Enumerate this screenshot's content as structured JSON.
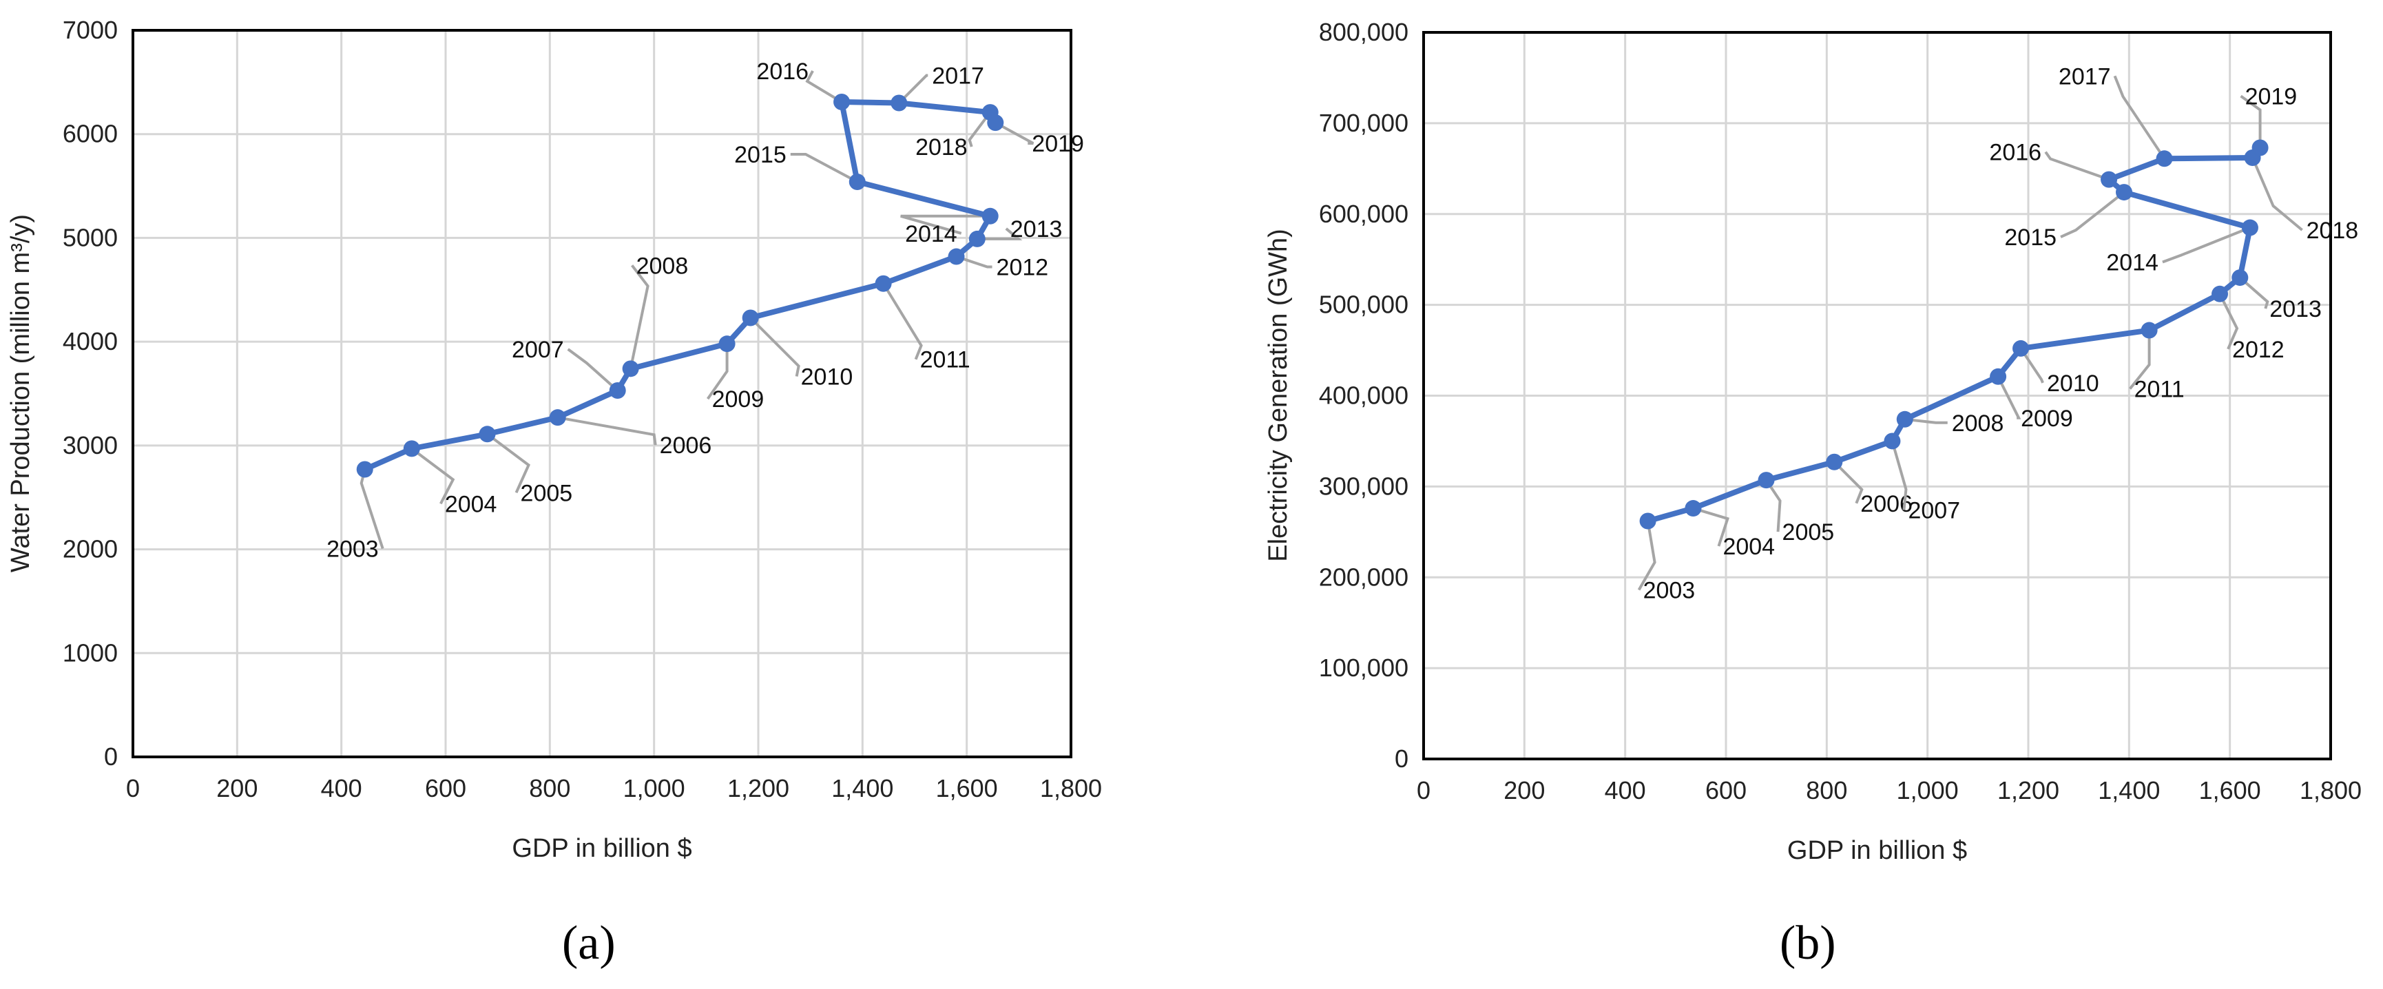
{
  "chart_data": [
    {
      "type": "line",
      "panel": "(a)",
      "xlabel": "GDP in billion $",
      "ylabel": "Water Production (million m³/y)",
      "xlim": [
        0,
        1800
      ],
      "ylim": [
        0,
        7000
      ],
      "xticks": [
        0,
        200,
        400,
        600,
        800,
        1000,
        1200,
        1400,
        1600,
        1800
      ],
      "xtick_labels": [
        "0",
        "200",
        "400",
        "600",
        "800",
        "1,000",
        "1,200",
        "1,400",
        "1,600",
        "1,800"
      ],
      "yticks": [
        0,
        1000,
        2000,
        3000,
        4000,
        5000,
        6000,
        7000
      ],
      "ytick_labels": [
        "0",
        "1000",
        "2000",
        "3000",
        "4000",
        "5000",
        "6000",
        "7000"
      ],
      "grid": true,
      "points": [
        {
          "label": "2003",
          "x": 445,
          "y": 2770
        },
        {
          "label": "2004",
          "x": 535,
          "y": 2970
        },
        {
          "label": "2005",
          "x": 680,
          "y": 3110
        },
        {
          "label": "2006",
          "x": 815,
          "y": 3270
        },
        {
          "label": "2007",
          "x": 930,
          "y": 3530
        },
        {
          "label": "2008",
          "x": 955,
          "y": 3740
        },
        {
          "label": "2009",
          "x": 1140,
          "y": 3980
        },
        {
          "label": "2010",
          "x": 1185,
          "y": 4230
        },
        {
          "label": "2011",
          "x": 1440,
          "y": 4560
        },
        {
          "label": "2012",
          "x": 1580,
          "y": 4820
        },
        {
          "label": "2013",
          "x": 1620,
          "y": 4990
        },
        {
          "label": "2014",
          "x": 1645,
          "y": 5210
        },
        {
          "label": "2015",
          "x": 1390,
          "y": 5540
        },
        {
          "label": "2016",
          "x": 1360,
          "y": 6310
        },
        {
          "label": "2017",
          "x": 1470,
          "y": 6300
        },
        {
          "label": "2018",
          "x": 1645,
          "y": 6210
        },
        {
          "label": "2019",
          "x": 1655,
          "y": 6110
        }
      ]
    },
    {
      "type": "line",
      "panel": "(b)",
      "xlabel": "GDP in billion $",
      "ylabel": "Electricity  Generation (GWh)",
      "xlim": [
        0,
        1800
      ],
      "ylim": [
        0,
        800000
      ],
      "xticks": [
        0,
        200,
        400,
        600,
        800,
        1000,
        1200,
        1400,
        1600,
        1800
      ],
      "xtick_labels": [
        "0",
        "200",
        "400",
        "600",
        "800",
        "1,000",
        "1,200",
        "1,400",
        "1,600",
        "1,800"
      ],
      "yticks": [
        0,
        100000,
        200000,
        300000,
        400000,
        500000,
        600000,
        700000,
        800000
      ],
      "ytick_labels": [
        "0",
        "100,000",
        "200,000",
        "300,000",
        "400,000",
        "500,000",
        "600,000",
        "700,000",
        "800,000"
      ],
      "grid": true,
      "points": [
        {
          "label": "2003",
          "x": 445,
          "y": 262000
        },
        {
          "label": "2004",
          "x": 535,
          "y": 276000
        },
        {
          "label": "2005",
          "x": 680,
          "y": 307000
        },
        {
          "label": "2006",
          "x": 815,
          "y": 327000
        },
        {
          "label": "2007",
          "x": 930,
          "y": 350000
        },
        {
          "label": "2008",
          "x": 955,
          "y": 374000
        },
        {
          "label": "2009",
          "x": 1140,
          "y": 421000
        },
        {
          "label": "2010",
          "x": 1185,
          "y": 452000
        },
        {
          "label": "2011",
          "x": 1440,
          "y": 472000
        },
        {
          "label": "2012",
          "x": 1580,
          "y": 512000
        },
        {
          "label": "2013",
          "x": 1620,
          "y": 530000
        },
        {
          "label": "2014",
          "x": 1640,
          "y": 585000
        },
        {
          "label": "2015",
          "x": 1390,
          "y": 624000
        },
        {
          "label": "2016",
          "x": 1360,
          "y": 638000
        },
        {
          "label": "2017",
          "x": 1470,
          "y": 661000
        },
        {
          "label": "2018",
          "x": 1645,
          "y": 662000
        },
        {
          "label": "2019",
          "x": 1660,
          "y": 673000
        }
      ]
    }
  ]
}
